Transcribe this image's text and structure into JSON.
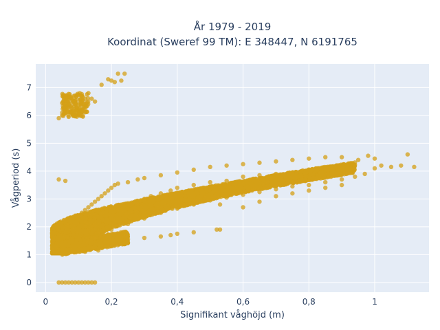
{
  "chart_data": {
    "type": "scatter",
    "title_line1": "År 1979 - 2019",
    "title_line2": "Koordinat (Sweref 99 TM): E 348447, N 6191765",
    "xlabel": "Signifikant våghöjd (m)",
    "ylabel": "Vågperiod (s)",
    "xlim": [
      -0.03,
      1.165
    ],
    "ylim": [
      -0.35,
      7.85
    ],
    "x_ticks": [
      0,
      0.2,
      0.4,
      0.6,
      0.8,
      1
    ],
    "x_tick_labels": [
      "0",
      "0,2",
      "0,4",
      "0,6",
      "0,8",
      "1"
    ],
    "y_ticks": [
      0,
      1,
      2,
      3,
      4,
      5,
      6,
      7
    ],
    "y_tick_labels": [
      "0",
      "1",
      "2",
      "3",
      "4",
      "5",
      "6",
      "7"
    ],
    "grid": true,
    "marker_color": "#d4a017",
    "plot_background": "#e5ecf6",
    "points": [
      [
        0.05,
        6.0
      ],
      [
        0.06,
        6.2
      ],
      [
        0.07,
        6.4
      ],
      [
        0.08,
        6.1
      ],
      [
        0.09,
        6.5
      ],
      [
        0.1,
        6.3
      ],
      [
        0.11,
        6.7
      ],
      [
        0.12,
        6.6
      ],
      [
        0.13,
        6.8
      ],
      [
        0.07,
        5.95
      ],
      [
        0.04,
        5.9
      ],
      [
        0.09,
        6.0
      ],
      [
        0.14,
        6.6
      ],
      [
        0.15,
        6.5
      ],
      [
        0.17,
        7.1
      ],
      [
        0.19,
        7.3
      ],
      [
        0.2,
        7.25
      ],
      [
        0.22,
        7.5
      ],
      [
        0.24,
        7.5
      ],
      [
        0.23,
        7.25
      ],
      [
        0.21,
        7.2
      ],
      [
        0.04,
        3.7
      ],
      [
        0.06,
        3.65
      ],
      [
        0.04,
        0
      ],
      [
        0.05,
        0
      ],
      [
        0.06,
        0
      ],
      [
        0.07,
        0
      ],
      [
        0.08,
        0
      ],
      [
        0.09,
        0
      ],
      [
        0.1,
        0
      ],
      [
        0.11,
        0
      ],
      [
        0.12,
        0
      ],
      [
        0.13,
        0
      ],
      [
        0.14,
        0
      ],
      [
        0.15,
        0
      ],
      [
        0.52,
        1.9
      ],
      [
        0.45,
        1.8
      ],
      [
        0.4,
        1.75
      ],
      [
        0.38,
        1.7
      ],
      [
        0.35,
        1.65
      ],
      [
        0.3,
        1.6
      ],
      [
        0.25,
        1.55
      ],
      [
        0.2,
        1.5
      ],
      [
        0.18,
        1.45
      ],
      [
        0.02,
        1.2
      ],
      [
        0.02,
        1.5
      ],
      [
        0.03,
        1.3
      ],
      [
        0.04,
        1.4
      ],
      [
        0.05,
        1.6
      ],
      [
        0.06,
        1.8
      ],
      [
        0.07,
        2.0
      ],
      [
        0.08,
        2.2
      ],
      [
        0.09,
        2.4
      ],
      [
        0.1,
        2.3
      ],
      [
        0.11,
        2.5
      ],
      [
        0.12,
        2.6
      ],
      [
        0.13,
        2.7
      ],
      [
        0.14,
        2.8
      ],
      [
        0.15,
        2.9
      ],
      [
        0.16,
        3.0
      ],
      [
        0.17,
        3.1
      ],
      [
        0.18,
        3.2
      ],
      [
        0.19,
        3.3
      ],
      [
        0.2,
        3.4
      ],
      [
        0.21,
        3.5
      ],
      [
        0.22,
        3.55
      ],
      [
        0.25,
        3.6
      ],
      [
        0.28,
        3.7
      ],
      [
        0.3,
        3.75
      ],
      [
        0.35,
        3.85
      ],
      [
        0.4,
        3.95
      ],
      [
        0.45,
        4.05
      ],
      [
        0.5,
        4.15
      ],
      [
        0.55,
        4.2
      ],
      [
        0.6,
        4.25
      ],
      [
        0.65,
        4.3
      ],
      [
        0.7,
        4.35
      ],
      [
        0.75,
        4.4
      ],
      [
        0.8,
        4.45
      ],
      [
        0.85,
        4.5
      ],
      [
        0.9,
        4.5
      ],
      [
        0.95,
        4.4
      ],
      [
        0.98,
        4.55
      ],
      [
        1.0,
        4.45
      ],
      [
        1.02,
        4.2
      ],
      [
        1.05,
        4.15
      ],
      [
        1.08,
        4.2
      ],
      [
        1.1,
        4.6
      ],
      [
        1.12,
        4.15
      ],
      [
        1.0,
        4.1
      ],
      [
        0.97,
        3.9
      ],
      [
        0.94,
        3.8
      ],
      [
        0.9,
        3.7
      ],
      [
        0.85,
        3.6
      ],
      [
        0.8,
        3.5
      ],
      [
        0.75,
        3.45
      ],
      [
        0.7,
        3.35
      ],
      [
        0.65,
        3.25
      ],
      [
        0.6,
        3.15
      ],
      [
        0.55,
        3.05
      ],
      [
        0.5,
        2.95
      ],
      [
        0.45,
        2.8
      ],
      [
        0.4,
        2.65
      ],
      [
        0.35,
        2.5
      ],
      [
        0.3,
        2.3
      ],
      [
        0.25,
        2.1
      ],
      [
        0.2,
        1.9
      ],
      [
        0.15,
        1.6
      ],
      [
        0.1,
        1.3
      ],
      [
        0.08,
        1.2
      ],
      [
        0.12,
        1.1
      ],
      [
        0.16,
        1.15
      ],
      [
        0.2,
        1.3
      ],
      [
        0.22,
        1.5
      ],
      [
        0.53,
        2.8
      ],
      [
        0.53,
        1.9
      ],
      [
        0.6,
        2.7
      ],
      [
        0.65,
        2.9
      ],
      [
        0.7,
        3.1
      ],
      [
        0.75,
        3.2
      ],
      [
        0.8,
        3.3
      ],
      [
        0.85,
        3.4
      ],
      [
        0.9,
        3.5
      ],
      [
        0.3,
        3.0
      ],
      [
        0.35,
        3.2
      ],
      [
        0.4,
        3.4
      ],
      [
        0.45,
        3.5
      ],
      [
        0.5,
        3.6
      ],
      [
        0.55,
        3.65
      ],
      [
        0.6,
        3.8
      ],
      [
        0.65,
        3.85
      ],
      [
        0.7,
        3.9
      ],
      [
        0.75,
        3.95
      ],
      [
        0.8,
        4.0
      ],
      [
        0.85,
        4.05
      ],
      [
        0.9,
        4.1
      ],
      [
        0.25,
        2.8
      ],
      [
        0.2,
        2.6
      ],
      [
        0.18,
        2.4
      ],
      [
        0.16,
        2.2
      ],
      [
        0.14,
        2.0
      ],
      [
        0.12,
        1.8
      ],
      [
        0.1,
        1.6
      ],
      [
        0.08,
        1.5
      ],
      [
        0.06,
        1.4
      ],
      [
        0.05,
        1.35
      ],
      [
        0.28,
        2.9
      ],
      [
        0.32,
        3.1
      ],
      [
        0.38,
        3.3
      ]
    ]
  }
}
